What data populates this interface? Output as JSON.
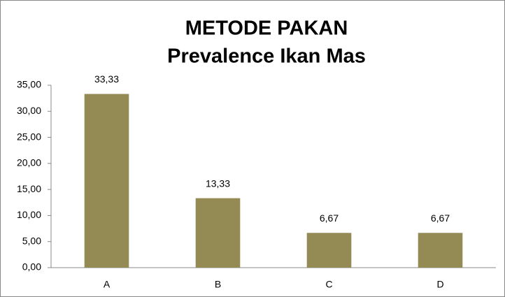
{
  "chart_data": {
    "type": "bar",
    "title": "METODE PAKAN",
    "subtitle": "Prevalence Ikan Mas",
    "categories": [
      "A",
      "B",
      "C",
      "D"
    ],
    "values": [
      33.33,
      13.33,
      6.67,
      6.67
    ],
    "value_labels": [
      "33,33",
      "13,33",
      "6,67",
      "6,67"
    ],
    "color": "#948a54",
    "ylim": [
      0,
      35
    ],
    "yticks": [
      {
        "value": 0,
        "label": "0,00"
      },
      {
        "value": 5,
        "label": "5,00"
      },
      {
        "value": 10,
        "label": "10,00"
      },
      {
        "value": 15,
        "label": "15,00"
      },
      {
        "value": 20,
        "label": "20,00"
      },
      {
        "value": 25,
        "label": "25,00"
      },
      {
        "value": 30,
        "label": "30,00"
      },
      {
        "value": 35,
        "label": "35,00"
      }
    ],
    "grid": false
  }
}
